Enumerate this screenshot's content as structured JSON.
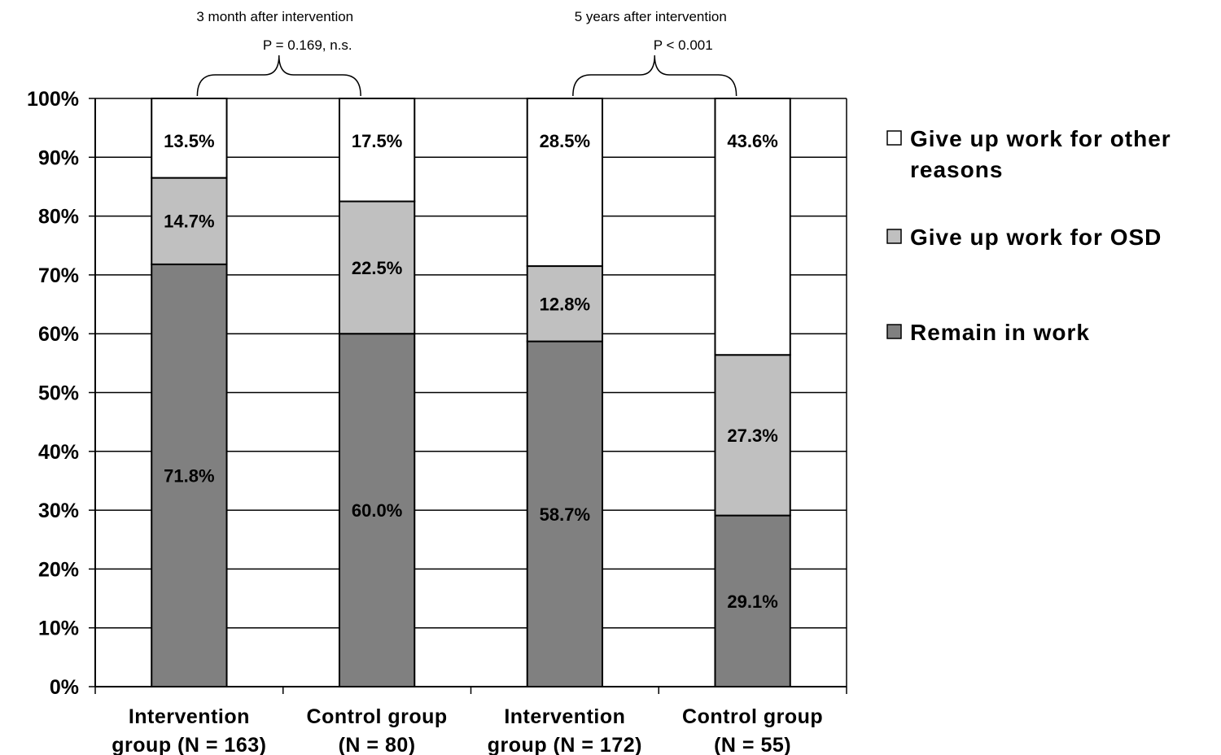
{
  "chart_data": {
    "type": "bar",
    "stacked": true,
    "categories": [
      [
        "Intervention",
        "group (N = 163)"
      ],
      [
        "Control group",
        "(N = 80)"
      ],
      [
        "Intervention",
        "group (N = 172)"
      ],
      [
        "Control group",
        "(N =  55)"
      ]
    ],
    "series": [
      {
        "name": "Remain in work",
        "color": "#808080",
        "values": [
          71.8,
          60.0,
          58.7,
          29.1
        ],
        "labels": [
          "71.8%",
          "60.0%",
          "58.7%",
          "29.1%"
        ]
      },
      {
        "name": "Give up work for OSD",
        "color": "#c0c0c0",
        "values": [
          14.7,
          22.5,
          12.8,
          27.3
        ],
        "labels": [
          "14.7%",
          "22.5%",
          "12.8%",
          "27.3%"
        ]
      },
      {
        "name": "Give up work for other reasons",
        "color": "#ffffff",
        "values": [
          13.5,
          17.5,
          28.5,
          43.6
        ],
        "labels": [
          "13.5%",
          "17.5%",
          "28.5%",
          "43.6%"
        ]
      }
    ],
    "legend_lines": [
      [
        "Give up work for other",
        "reasons"
      ],
      [
        "Give up work for OSD"
      ],
      [
        "Remain in work"
      ]
    ],
    "yticks": [
      "0%",
      "10%",
      "20%",
      "30%",
      "40%",
      "50%",
      "60%",
      "70%",
      "80%",
      "90%",
      "100%"
    ],
    "ylim": [
      0,
      100
    ],
    "grid": true,
    "legend_position": "right",
    "annotations": [
      {
        "title": "3 month after intervention",
        "pvalue": "P = 0.169, n.s.",
        "spans": [
          0,
          1
        ]
      },
      {
        "title": "5 years after intervention",
        "pvalue": "P < 0.001",
        "spans": [
          2,
          3
        ]
      }
    ]
  }
}
